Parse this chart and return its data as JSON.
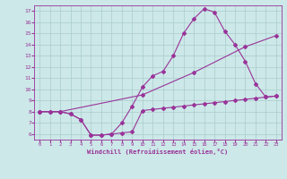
{
  "xlabel": "Windchill (Refroidissement éolien,°C)",
  "xlim": [
    -0.5,
    23.5
  ],
  "ylim": [
    5.5,
    17.5
  ],
  "xticks": [
    0,
    1,
    2,
    3,
    4,
    5,
    6,
    7,
    8,
    9,
    10,
    11,
    12,
    13,
    14,
    15,
    16,
    17,
    18,
    19,
    20,
    21,
    22,
    23
  ],
  "yticks": [
    6,
    7,
    8,
    9,
    10,
    11,
    12,
    13,
    14,
    15,
    16,
    17
  ],
  "background_color": "#cce8e8",
  "grid_color": "#aacccc",
  "line_color": "#993399",
  "line1_x": [
    0,
    1,
    2,
    3,
    4,
    5,
    6,
    7,
    8,
    9,
    10,
    11,
    12,
    13,
    14,
    15,
    16,
    17,
    18,
    19,
    20,
    21,
    22,
    23
  ],
  "line1_y": [
    8.0,
    8.0,
    8.0,
    7.8,
    7.3,
    5.9,
    5.9,
    6.0,
    6.1,
    6.2,
    8.1,
    8.2,
    8.3,
    8.4,
    8.5,
    8.6,
    8.7,
    8.8,
    8.9,
    9.0,
    9.1,
    9.2,
    9.3,
    9.4
  ],
  "line2_x": [
    0,
    2,
    10,
    15,
    20,
    23
  ],
  "line2_y": [
    8.0,
    8.0,
    9.5,
    11.5,
    13.8,
    14.8
  ],
  "line3_x": [
    0,
    1,
    2,
    3,
    4,
    5,
    6,
    7,
    8,
    9,
    10,
    11,
    12,
    13,
    14,
    15,
    16,
    17,
    18,
    19,
    20,
    21,
    22,
    23
  ],
  "line3_y": [
    8.0,
    8.0,
    8.0,
    7.8,
    7.3,
    5.9,
    5.9,
    6.0,
    7.0,
    8.5,
    10.2,
    11.2,
    11.6,
    13.0,
    15.0,
    16.3,
    17.2,
    16.9,
    15.2,
    14.0,
    12.5,
    10.5,
    9.3,
    9.4
  ],
  "figsize": [
    3.2,
    2.0
  ],
  "dpi": 100
}
